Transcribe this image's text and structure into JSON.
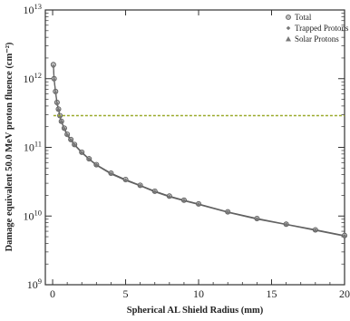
{
  "chart_data": {
    "type": "line",
    "title": "",
    "xlabel": "Spherical AL Shield Radius (mm)",
    "ylabel": "Damage equivalent 50.0 MeV proton fluence (cm⁻²)",
    "xlim": [
      -0.5,
      20
    ],
    "ylim": [
      1000000000.0,
      10000000000000.0
    ],
    "yscale": "log",
    "x_ticks": [
      "0",
      "5",
      "10",
      "15",
      "20"
    ],
    "y_ticks": [
      {
        "value": 1000000000.0,
        "base": "10",
        "exp": "9"
      },
      {
        "value": 10000000000.0,
        "base": "10",
        "exp": "10"
      },
      {
        "value": 100000000000.0,
        "base": "10",
        "exp": "11"
      },
      {
        "value": 1000000000000.0,
        "base": "10",
        "exp": "12"
      },
      {
        "value": 10000000000000.0,
        "base": "10",
        "exp": "13"
      }
    ],
    "legend_position": "top-right",
    "series": [
      {
        "name": "Total",
        "marker": "circle",
        "color": "#555555",
        "x": [
          0.05,
          0.1,
          0.2,
          0.3,
          0.4,
          0.5,
          0.6,
          0.8,
          1.0,
          1.25,
          1.5,
          2.0,
          2.5,
          3.0,
          4.0,
          5.0,
          6.0,
          7.0,
          8.0,
          9.0,
          10.0,
          12.0,
          14.0,
          16.0,
          18.0,
          20.0
        ],
        "y": [
          1600000000000.0,
          1000000000000.0,
          650000000000.0,
          450000000000.0,
          360000000000.0,
          290000000000.0,
          240000000000.0,
          190000000000.0,
          155000000000.0,
          130000000000.0,
          110000000000.0,
          85000000000.0,
          68000000000.0,
          56000000000.0,
          42000000000.0,
          34000000000.0,
          28000000000.0,
          23000000000.0,
          19500000000.0,
          17000000000.0,
          15000000000.0,
          11500000000.0,
          9200000000.0,
          7600000000.0,
          6300000000.0,
          5200000000.0
        ]
      },
      {
        "name": "Trapped Protons",
        "marker": "diamond",
        "color": "#666666",
        "x": [
          0.05,
          0.1,
          0.2,
          0.3,
          0.4,
          0.5,
          0.6,
          0.8,
          1.0,
          1.25,
          1.5,
          2.0,
          2.5,
          3.0,
          4.0,
          5.0,
          6.0,
          7.0,
          8.0,
          9.0,
          10.0,
          12.0,
          14.0,
          16.0,
          18.0,
          20.0
        ],
        "y": [
          1500000000000.0,
          950000000000.0,
          620000000000.0,
          430000000000.0,
          350000000000.0,
          280000000000.0,
          235000000000.0,
          185000000000.0,
          150000000000.0,
          127000000000.0,
          108000000000.0,
          83000000000.0,
          67000000000.0,
          55000000000.0,
          41000000000.0,
          33000000000.0,
          27500000000.0,
          22500000000.0,
          19000000000.0,
          16700000000.0,
          14700000000.0,
          11300000000.0,
          9000000000.0,
          7500000000.0,
          6200000000.0,
          5100000000.0
        ]
      },
      {
        "name": "Solar Protons",
        "marker": "triangle",
        "color": "#9aaa2a",
        "x": [
          0.05,
          0.1,
          0.2,
          0.3,
          0.4,
          0.5,
          0.6,
          0.8,
          1.0,
          1.25,
          1.5,
          2.0,
          2.5,
          3.0,
          4.0,
          5.0,
          6.0,
          7.0,
          8.0,
          9.0,
          10.0,
          12.0,
          14.0,
          16.0,
          18.0,
          20.0
        ],
        "y": [
          290000000000.0,
          290000000000.0,
          290000000000.0,
          290000000000.0,
          290000000000.0,
          290000000000.0,
          290000000000.0,
          290000000000.0,
          290000000000.0,
          290000000000.0,
          290000000000.0,
          290000000000.0,
          290000000000.0,
          290000000000.0,
          290000000000.0,
          290000000000.0,
          290000000000.0,
          290000000000.0,
          290000000000.0,
          290000000000.0,
          290000000000.0,
          290000000000.0,
          290000000000.0,
          290000000000.0,
          290000000000.0,
          290000000000.0
        ]
      }
    ]
  }
}
